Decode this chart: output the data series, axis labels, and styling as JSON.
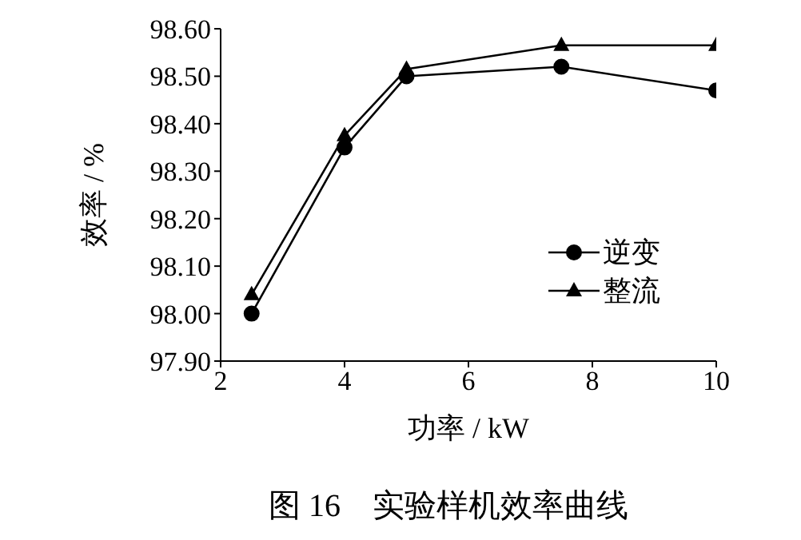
{
  "chart_data": {
    "type": "line",
    "xlabel": "功率 / kW",
    "ylabel": "效率 / %",
    "x": [
      2.5,
      4,
      5,
      7.5,
      10
    ],
    "series": [
      {
        "name": "逆变",
        "color": "#000000",
        "marker": "circle",
        "values": [
          98.0,
          98.35,
          98.5,
          98.52,
          98.47
        ]
      },
      {
        "name": "整流",
        "color": "#000000",
        "marker": "triangle",
        "values": [
          98.04,
          98.375,
          98.515,
          98.565,
          98.565
        ]
      }
    ],
    "xlim": [
      2,
      10
    ],
    "xticks": [
      2,
      4,
      6,
      8,
      10
    ],
    "ylim": [
      97.9,
      98.6
    ],
    "yticks": [
      {
        "value": 97.9,
        "label": "97.90"
      },
      {
        "value": 98.0,
        "label": "98.00"
      },
      {
        "value": 98.1,
        "label": "98.10"
      },
      {
        "value": 98.2,
        "label": "98.20"
      },
      {
        "value": 98.3,
        "label": "98.30"
      },
      {
        "value": 98.4,
        "label": "98.40"
      },
      {
        "value": 98.5,
        "label": "98.50"
      },
      {
        "value": 98.6,
        "label": "98.60"
      }
    ],
    "grid": false,
    "legend": "bottom right",
    "line_style": "solid",
    "annotations": [
      "图 16　实验样机效率曲线"
    ]
  }
}
